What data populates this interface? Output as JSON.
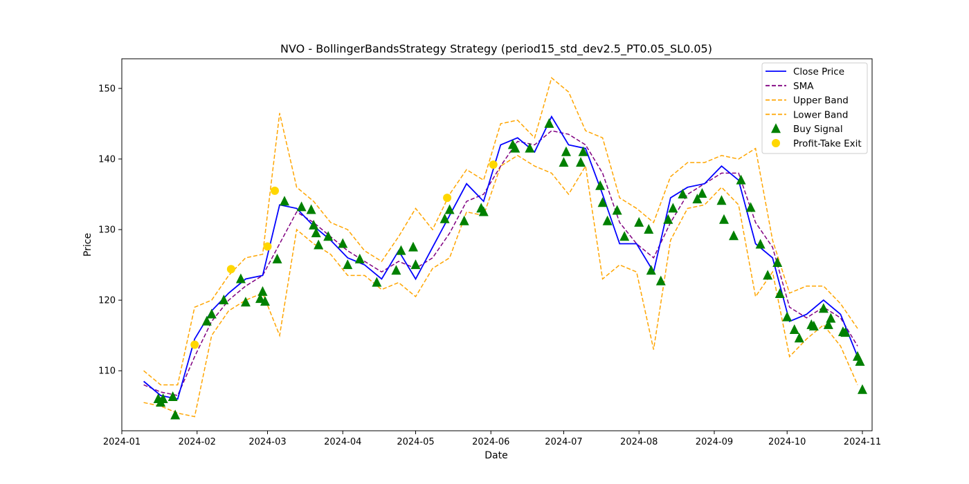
{
  "chart_data": {
    "type": "line",
    "title": "NVO - BollingerBandsStrategy Strategy (period15_std_dev2.5_PT0.05_SL0.05)",
    "xlabel": "Date",
    "ylabel": "Price",
    "xlim": [
      "2024-01-01",
      "2024-11-05"
    ],
    "ylim": [
      101.5,
      154.2
    ],
    "x_ticks": [
      "2024-01",
      "2024-02",
      "2024-03",
      "2024-04",
      "2024-05",
      "2024-06",
      "2024-07",
      "2024-08",
      "2024-09",
      "2024-10",
      "2024-11"
    ],
    "y_ticks": [
      110,
      120,
      130,
      140,
      150
    ],
    "grid": false,
    "legend_position": "top-right",
    "legend": [
      {
        "name": "Close Price",
        "style": "solid",
        "color": "#0000ff"
      },
      {
        "name": "SMA",
        "style": "dashed",
        "color": "#800080"
      },
      {
        "name": "Upper Band",
        "style": "dashed",
        "color": "#ffa500"
      },
      {
        "name": "Lower Band",
        "style": "dashed",
        "color": "#ffa500"
      },
      {
        "name": "Buy Signal",
        "style": "marker-triangle",
        "color": "#008000"
      },
      {
        "name": "Profit-Take Exit",
        "style": "marker-circle",
        "color": "#ffd700"
      }
    ],
    "x": [
      "2024-01-10",
      "2024-01-17",
      "2024-01-24",
      "2024-01-31",
      "2024-02-07",
      "2024-02-14",
      "2024-02-21",
      "2024-02-28",
      "2024-03-06",
      "2024-03-13",
      "2024-03-20",
      "2024-03-27",
      "2024-04-03",
      "2024-04-10",
      "2024-04-17",
      "2024-04-24",
      "2024-05-01",
      "2024-05-08",
      "2024-05-15",
      "2024-05-22",
      "2024-05-29",
      "2024-06-05",
      "2024-06-12",
      "2024-06-19",
      "2024-06-26",
      "2024-07-03",
      "2024-07-10",
      "2024-07-17",
      "2024-07-24",
      "2024-07-31",
      "2024-08-07",
      "2024-08-14",
      "2024-08-21",
      "2024-08-28",
      "2024-09-04",
      "2024-09-11",
      "2024-09-18",
      "2024-09-25",
      "2024-10-02",
      "2024-10-09",
      "2024-10-16",
      "2024-10-23",
      "2024-10-30"
    ],
    "series": [
      {
        "name": "Close Price",
        "color": "#0000ff",
        "style": "solid",
        "values": [
          108.5,
          106.5,
          106.0,
          114.5,
          118.5,
          121.0,
          123.0,
          123.5,
          133.5,
          133.0,
          130.5,
          128.5,
          126.0,
          125.0,
          123.0,
          127.0,
          123.0,
          127.5,
          132.0,
          136.5,
          134.0,
          142.0,
          143.0,
          141.0,
          146.0,
          142.0,
          141.5,
          135.0,
          128.0,
          128.0,
          124.0,
          134.5,
          136.0,
          136.5,
          139.0,
          137.0,
          128.0,
          126.0,
          117.0,
          118.0,
          120.0,
          118.0,
          112.0
        ]
      },
      {
        "name": "SMA",
        "color": "#800080",
        "style": "dashed",
        "values": [
          108.0,
          107.0,
          106.5,
          112.0,
          117.0,
          120.0,
          122.0,
          123.5,
          128.0,
          132.5,
          131.0,
          129.0,
          127.0,
          125.5,
          124.0,
          125.5,
          124.5,
          126.0,
          129.5,
          134.0,
          135.0,
          139.0,
          142.5,
          142.0,
          144.0,
          143.5,
          142.0,
          138.0,
          131.0,
          128.0,
          126.0,
          131.0,
          135.0,
          136.5,
          138.0,
          138.0,
          131.0,
          127.5,
          119.0,
          117.5,
          119.0,
          117.5,
          113.5
        ]
      },
      {
        "name": "Upper Band",
        "color": "#ffa500",
        "style": "dashed",
        "values": [
          110.0,
          108.0,
          108.0,
          119.0,
          120.0,
          123.5,
          126.0,
          126.5,
          146.5,
          136.0,
          134.0,
          131.0,
          130.0,
          127.0,
          125.5,
          129.0,
          133.0,
          130.0,
          135.0,
          138.5,
          137.0,
          145.0,
          145.5,
          143.0,
          151.5,
          149.5,
          144.0,
          143.0,
          134.5,
          133.0,
          131.0,
          137.5,
          139.5,
          139.5,
          140.5,
          140.0,
          141.5,
          128.5,
          121.0,
          122.0,
          122.0,
          119.5,
          116.0
        ]
      },
      {
        "name": "Lower Band",
        "color": "#ffa500",
        "style": "dashed",
        "values": [
          105.5,
          105.0,
          104.0,
          103.5,
          115.0,
          118.5,
          120.0,
          121.0,
          115.0,
          130.0,
          128.0,
          126.5,
          123.5,
          123.5,
          121.5,
          122.5,
          120.5,
          124.5,
          126.0,
          132.5,
          132.0,
          139.0,
          140.5,
          139.0,
          138.0,
          135.0,
          139.0,
          123.0,
          125.0,
          124.0,
          113.0,
          128.5,
          133.0,
          133.5,
          136.0,
          133.5,
          120.5,
          124.0,
          112.0,
          114.5,
          116.5,
          113.5,
          108.0
        ]
      }
    ],
    "buy_signals": {
      "x": [
        "2024-01-16",
        "2024-01-17",
        "2024-01-18",
        "2024-01-22",
        "2024-01-23",
        "2024-02-05",
        "2024-02-07",
        "2024-02-12",
        "2024-02-19",
        "2024-02-21",
        "2024-02-27",
        "2024-02-28",
        "2024-02-29",
        "2024-03-05",
        "2024-03-08",
        "2024-03-15",
        "2024-03-19",
        "2024-03-20",
        "2024-03-21",
        "2024-03-22",
        "2024-03-26",
        "2024-04-01",
        "2024-04-03",
        "2024-04-08",
        "2024-04-15",
        "2024-04-23",
        "2024-04-25",
        "2024-04-30",
        "2024-05-01",
        "2024-05-13",
        "2024-05-15",
        "2024-05-21",
        "2024-05-28",
        "2024-05-29",
        "2024-06-10",
        "2024-06-11",
        "2024-06-17",
        "2024-06-25",
        "2024-07-01",
        "2024-07-02",
        "2024-07-08",
        "2024-07-09",
        "2024-07-16",
        "2024-07-17",
        "2024-07-19",
        "2024-07-23",
        "2024-07-26",
        "2024-08-01",
        "2024-08-05",
        "2024-08-06",
        "2024-08-10",
        "2024-08-13",
        "2024-08-15",
        "2024-08-19",
        "2024-08-25",
        "2024-08-27",
        "2024-09-04",
        "2024-09-05",
        "2024-09-09",
        "2024-09-12",
        "2024-09-16",
        "2024-09-20",
        "2024-09-23",
        "2024-09-27",
        "2024-09-28",
        "2024-10-01",
        "2024-10-04",
        "2024-10-06",
        "2024-10-11",
        "2024-10-12",
        "2024-10-16",
        "2024-10-18",
        "2024-10-19",
        "2024-10-24",
        "2024-10-25",
        "2024-10-30",
        "2024-10-31",
        "2024-11-01"
      ],
      "values": [
        106.0,
        105.5,
        106.0,
        106.3,
        103.7,
        117.0,
        118.0,
        120.0,
        123.0,
        119.7,
        120.2,
        121.2,
        119.8,
        125.8,
        134.0,
        133.2,
        132.8,
        130.6,
        129.5,
        127.8,
        129.0,
        128.0,
        125.0,
        125.8,
        122.5,
        124.2,
        127.0,
        127.5,
        125.0,
        131.5,
        132.8,
        131.2,
        133.0,
        132.5,
        142.0,
        141.5,
        141.5,
        145.0,
        139.5,
        141.0,
        139.5,
        141.0,
        136.2,
        133.8,
        131.2,
        132.7,
        129.0,
        131.0,
        130.0,
        124.2,
        122.7,
        131.4,
        133.0,
        135.0,
        134.3,
        135.1,
        134.1,
        131.4,
        129.1,
        137.0,
        133.1,
        127.9,
        123.5,
        125.3,
        120.9,
        117.6,
        115.8,
        114.6,
        116.5,
        116.3,
        118.8,
        116.5,
        117.4,
        115.5,
        115.4,
        112.0,
        111.3,
        107.3
      ]
    },
    "profit_take_exits": {
      "x": [
        "2024-01-31",
        "2024-02-15",
        "2024-03-01",
        "2024-03-04",
        "2024-05-14",
        "2024-06-02"
      ],
      "values": [
        113.7,
        124.4,
        127.6,
        135.5,
        134.5,
        139.2
      ]
    }
  }
}
